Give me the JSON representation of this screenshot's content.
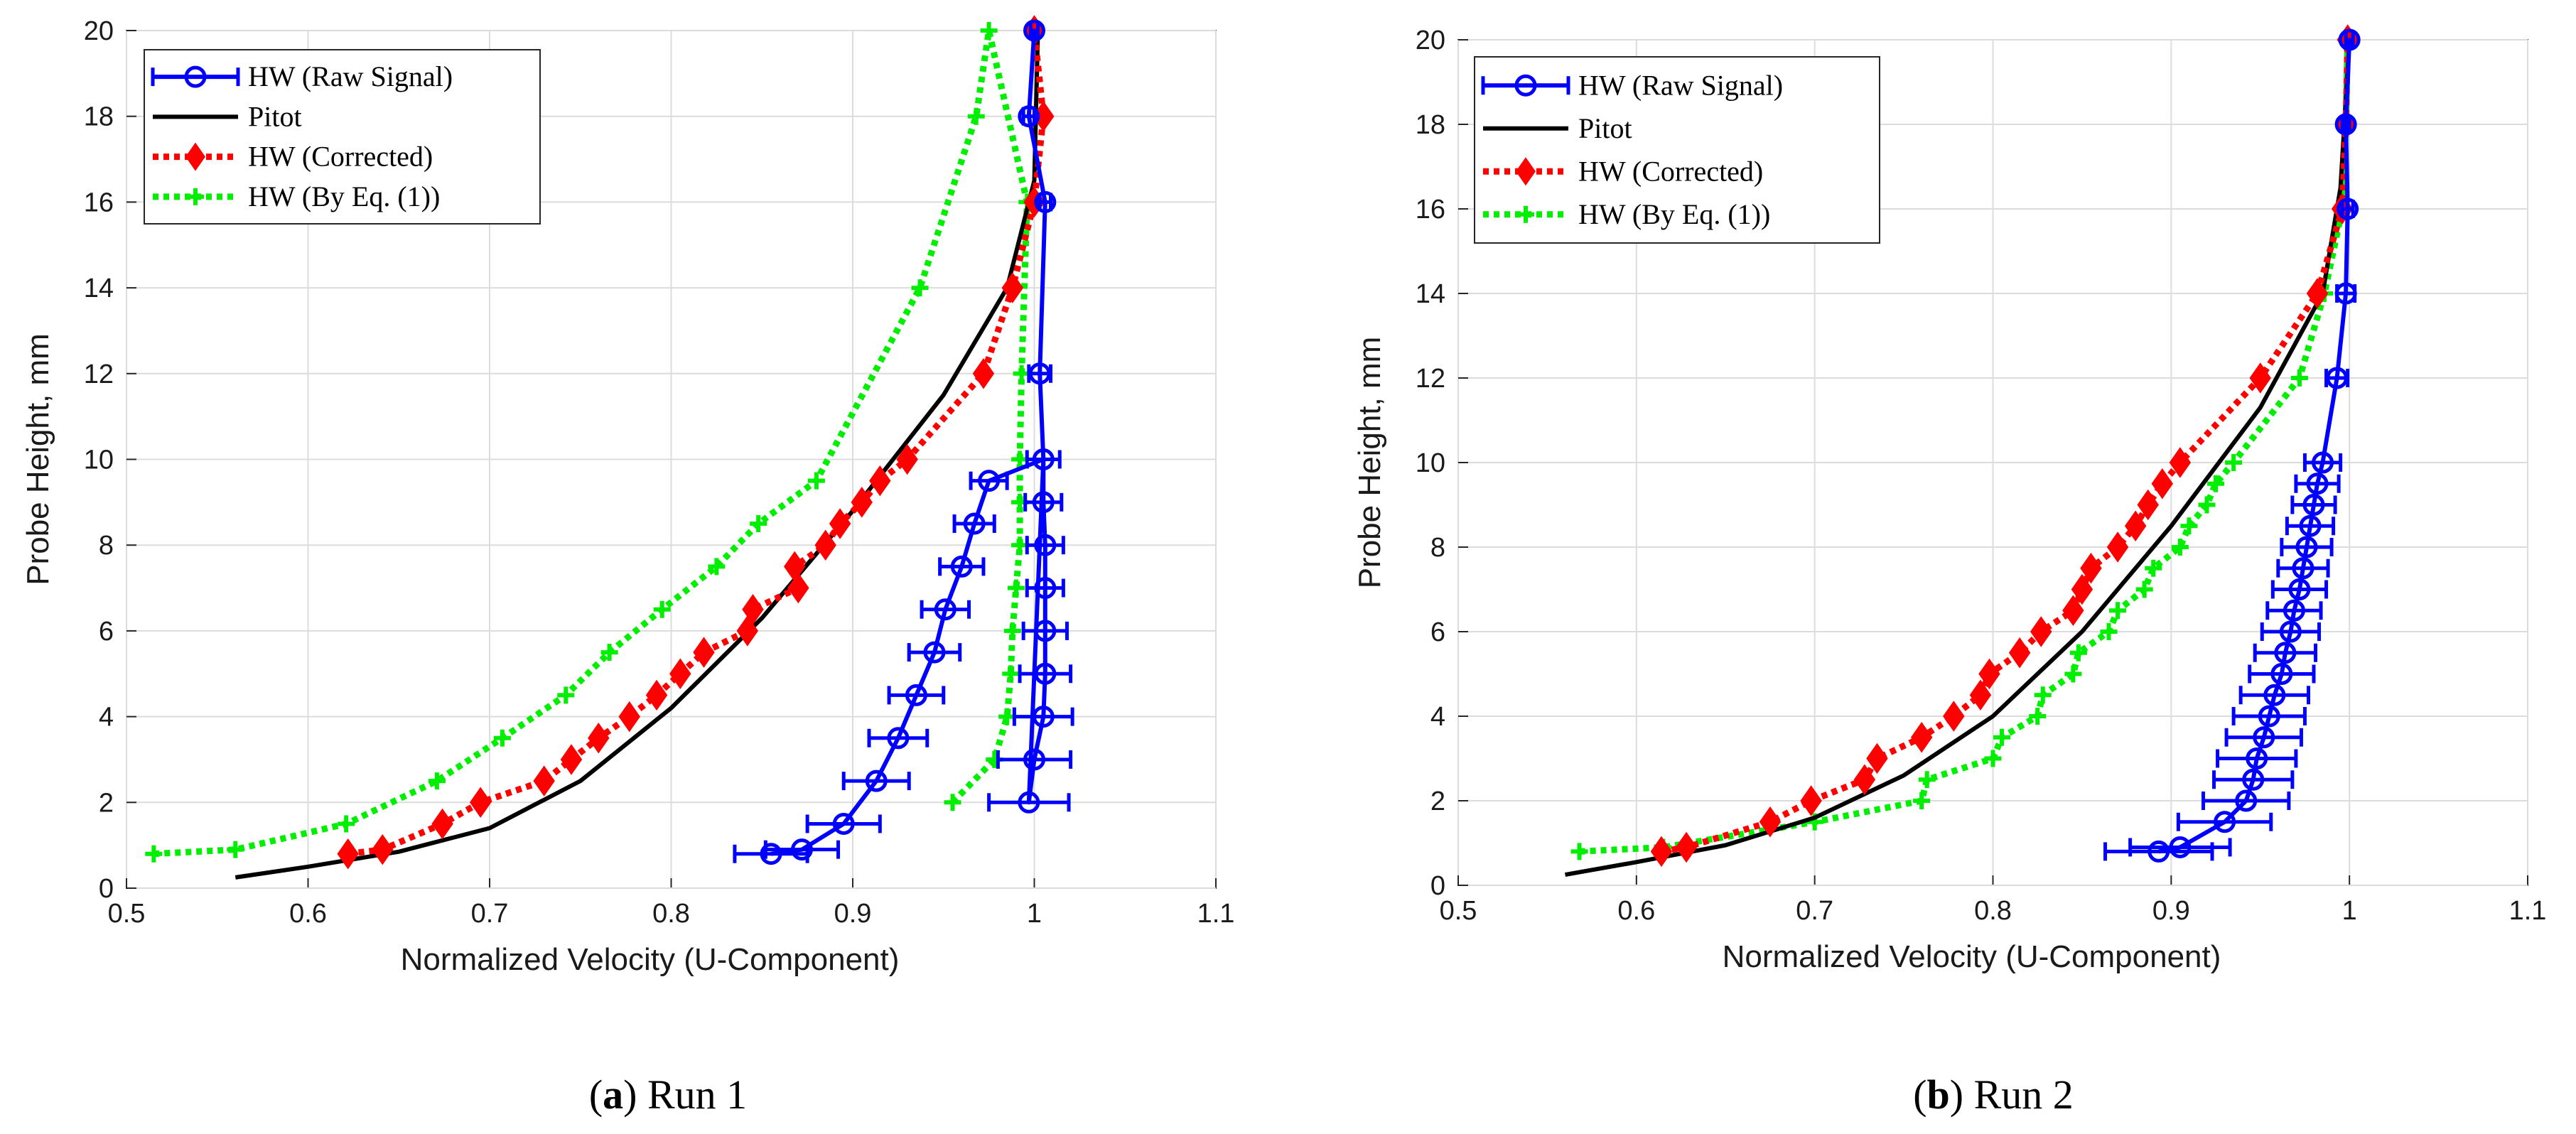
{
  "chart_data": [
    {
      "type": "line",
      "panel": "a",
      "caption_letter": "a",
      "caption_text": "Run 1",
      "xlabel": "Normalized Velocity (U-Component)",
      "ylabel": "Probe Height, mm",
      "xlim": [
        0.5,
        1.1
      ],
      "ylim": [
        0,
        20
      ],
      "xticks": [
        0.5,
        0.6,
        0.7,
        0.8,
        0.9,
        1,
        1.1
      ],
      "yticks": [
        0,
        2,
        4,
        6,
        8,
        10,
        12,
        14,
        16,
        18,
        20
      ],
      "grid": true,
      "legend_position": "top-left",
      "series": [
        {
          "name": "HW (Raw Signal)",
          "color": "#0000ff",
          "style": "solid",
          "marker": "circle",
          "errorbars": true,
          "points": [
            [
              0.855,
              0.8
            ],
            [
              0.872,
              0.9
            ],
            [
              0.895,
              1.5
            ],
            [
              0.913,
              2.5
            ],
            [
              0.925,
              3.5
            ],
            [
              0.935,
              4.5
            ],
            [
              0.945,
              5.5
            ],
            [
              0.951,
              6.5
            ],
            [
              0.96,
              7.5
            ],
            [
              0.967,
              8.5
            ],
            [
              0.975,
              9.5
            ],
            [
              1.005,
              10.0
            ],
            [
              1.005,
              9.0
            ],
            [
              1.006,
              8.0
            ],
            [
              1.006,
              7.0
            ],
            [
              1.006,
              6.0
            ],
            [
              1.006,
              5.0
            ],
            [
              1.005,
              4.0
            ],
            [
              1.0,
              3.0
            ],
            [
              0.997,
              2.0
            ],
            [
              1.003,
              12.0
            ],
            [
              1.006,
              16.0
            ],
            [
              0.997,
              18.0
            ],
            [
              1.0,
              20.0
            ]
          ],
          "line_order": [
            [
              0.855,
              0.8
            ],
            [
              0.872,
              0.9
            ],
            [
              0.895,
              1.5
            ],
            [
              0.913,
              2.5
            ],
            [
              0.925,
              3.5
            ],
            [
              0.935,
              4.5
            ],
            [
              0.945,
              5.5
            ],
            [
              0.951,
              6.5
            ],
            [
              0.96,
              7.5
            ],
            [
              0.967,
              8.5
            ],
            [
              0.975,
              9.5
            ],
            [
              1.005,
              10.0
            ],
            [
              1.005,
              9.0
            ],
            [
              1.006,
              8.0
            ],
            [
              1.006,
              7.0
            ],
            [
              1.006,
              6.0
            ],
            [
              1.006,
              5.0
            ],
            [
              1.005,
              4.0
            ],
            [
              1.0,
              3.0
            ],
            [
              0.997,
              2.0
            ],
            [
              1.005,
              10.0
            ],
            [
              1.003,
              12.0
            ],
            [
              1.006,
              16.0
            ],
            [
              0.997,
              18.0
            ],
            [
              1.0,
              20.0
            ]
          ],
          "xerr": [
            0.02,
            0.02,
            0.02,
            0.018,
            0.016,
            0.015,
            0.014,
            0.013,
            0.012,
            0.011,
            0.01,
            0.009,
            0.01,
            0.01,
            0.01,
            0.012,
            0.014,
            0.016,
            0.02,
            0.022,
            0.006,
            0.003,
            0.003,
            0.002
          ]
        },
        {
          "name": "Pitot",
          "color": "#000000",
          "style": "solid",
          "marker": "none",
          "points": [
            [
              0.56,
              0.25
            ],
            [
              0.6,
              0.5
            ],
            [
              0.65,
              0.85
            ],
            [
              0.7,
              1.4
            ],
            [
              0.75,
              2.5
            ],
            [
              0.8,
              4.2
            ],
            [
              0.85,
              6.3
            ],
            [
              0.9,
              8.8
            ],
            [
              0.95,
              11.5
            ],
            [
              0.985,
              14.0
            ],
            [
              1.0,
              16.5
            ],
            [
              1.002,
              20.0
            ]
          ]
        },
        {
          "name": "HW (Corrected)",
          "color": "#ff0000",
          "style": "dotted",
          "marker": "diamond",
          "points": [
            [
              0.622,
              0.8
            ],
            [
              0.641,
              0.9
            ],
            [
              0.674,
              1.5
            ],
            [
              0.695,
              2.0
            ],
            [
              0.73,
              2.5
            ],
            [
              0.745,
              3.0
            ],
            [
              0.76,
              3.5
            ],
            [
              0.777,
              4.0
            ],
            [
              0.792,
              4.5
            ],
            [
              0.805,
              5.0
            ],
            [
              0.818,
              5.5
            ],
            [
              0.842,
              6.0
            ],
            [
              0.845,
              6.5
            ],
            [
              0.87,
              7.0
            ],
            [
              0.868,
              7.5
            ],
            [
              0.885,
              8.0
            ],
            [
              0.893,
              8.5
            ],
            [
              0.905,
              9.0
            ],
            [
              0.915,
              9.5
            ],
            [
              0.93,
              10.0
            ],
            [
              0.972,
              12.0
            ],
            [
              0.988,
              14.0
            ],
            [
              1.0,
              16.0
            ],
            [
              1.005,
              18.0
            ],
            [
              1.0,
              20.0
            ]
          ]
        },
        {
          "name": "HW (By Eq. (1))",
          "color": "#00ee00",
          "style": "dotted",
          "marker": "plus",
          "points": [
            [
              0.515,
              0.8
            ],
            [
              0.56,
              0.9
            ],
            [
              0.621,
              1.5
            ],
            [
              0.671,
              2.5
            ],
            [
              0.707,
              3.5
            ],
            [
              0.742,
              4.5
            ],
            [
              0.766,
              5.5
            ],
            [
              0.795,
              6.5
            ],
            [
              0.825,
              7.5
            ],
            [
              0.848,
              8.5
            ],
            [
              0.88,
              9.5
            ],
            [
              0.937,
              14.0
            ],
            [
              0.968,
              18.0
            ],
            [
              0.975,
              20.0
            ],
            [
              0.996,
              16.0
            ],
            [
              0.993,
              12.0
            ],
            [
              0.992,
              10.0
            ],
            [
              0.992,
              9.0
            ],
            [
              0.992,
              8.0
            ],
            [
              0.99,
              7.0
            ],
            [
              0.988,
              6.0
            ],
            [
              0.987,
              5.0
            ],
            [
              0.985,
              4.0
            ],
            [
              0.978,
              3.0
            ],
            [
              0.955,
              2.0
            ]
          ]
        }
      ]
    },
    {
      "type": "line",
      "panel": "b",
      "caption_letter": "b",
      "caption_text": "Run 2",
      "xlabel": "Normalized Velocity (U-Component)",
      "ylabel": "Probe Height, mm",
      "xlim": [
        0.5,
        1.1
      ],
      "ylim": [
        0,
        20
      ],
      "xticks": [
        0.5,
        0.6,
        0.7,
        0.8,
        0.9,
        1,
        1.1
      ],
      "yticks": [
        0,
        2,
        4,
        6,
        8,
        10,
        12,
        14,
        16,
        18,
        20
      ],
      "grid": true,
      "legend_position": "top-left",
      "series": [
        {
          "name": "HW (Raw Signal)",
          "color": "#0000ff",
          "style": "solid",
          "marker": "circle",
          "errorbars": true,
          "points": [
            [
              0.893,
              0.8
            ],
            [
              0.905,
              0.9
            ],
            [
              0.93,
              1.5
            ],
            [
              0.942,
              2.0
            ],
            [
              0.946,
              2.5
            ],
            [
              0.948,
              3.0
            ],
            [
              0.952,
              3.5
            ],
            [
              0.955,
              4.0
            ],
            [
              0.958,
              4.5
            ],
            [
              0.962,
              5.0
            ],
            [
              0.964,
              5.5
            ],
            [
              0.967,
              6.0
            ],
            [
              0.969,
              6.5
            ],
            [
              0.972,
              7.0
            ],
            [
              0.974,
              7.5
            ],
            [
              0.976,
              8.0
            ],
            [
              0.978,
              8.5
            ],
            [
              0.98,
              9.0
            ],
            [
              0.982,
              9.5
            ],
            [
              0.985,
              10.0
            ],
            [
              0.993,
              12.0
            ],
            [
              0.998,
              14.0
            ],
            [
              0.999,
              16.0
            ],
            [
              0.998,
              18.0
            ],
            [
              1.0,
              20.0
            ]
          ],
          "xerr": [
            0.03,
            0.028,
            0.026,
            0.024,
            0.022,
            0.022,
            0.021,
            0.02,
            0.019,
            0.018,
            0.017,
            0.016,
            0.015,
            0.015,
            0.014,
            0.014,
            0.013,
            0.012,
            0.012,
            0.01,
            0.006,
            0.005,
            0.003,
            0.002,
            0.002
          ]
        },
        {
          "name": "Pitot",
          "color": "#000000",
          "style": "solid",
          "marker": "none",
          "points": [
            [
              0.56,
              0.25
            ],
            [
              0.6,
              0.55
            ],
            [
              0.65,
              0.95
            ],
            [
              0.7,
              1.6
            ],
            [
              0.75,
              2.6
            ],
            [
              0.8,
              4.0
            ],
            [
              0.85,
              6.0
            ],
            [
              0.9,
              8.5
            ],
            [
              0.95,
              11.3
            ],
            [
              0.985,
              14.0
            ],
            [
              0.995,
              16.5
            ],
            [
              1.0,
              20.0
            ]
          ]
        },
        {
          "name": "HW (Corrected)",
          "color": "#ff0000",
          "style": "dotted",
          "marker": "diamond",
          "points": [
            [
              0.614,
              0.8
            ],
            [
              0.628,
              0.9
            ],
            [
              0.675,
              1.5
            ],
            [
              0.698,
              2.0
            ],
            [
              0.728,
              2.5
            ],
            [
              0.735,
              3.0
            ],
            [
              0.76,
              3.5
            ],
            [
              0.778,
              4.0
            ],
            [
              0.793,
              4.5
            ],
            [
              0.798,
              5.0
            ],
            [
              0.815,
              5.5
            ],
            [
              0.827,
              6.0
            ],
            [
              0.845,
              6.5
            ],
            [
              0.85,
              7.0
            ],
            [
              0.855,
              7.5
            ],
            [
              0.87,
              8.0
            ],
            [
              0.88,
              8.5
            ],
            [
              0.887,
              9.0
            ],
            [
              0.895,
              9.5
            ],
            [
              0.905,
              10.0
            ],
            [
              0.95,
              12.0
            ],
            [
              0.982,
              14.0
            ],
            [
              0.996,
              16.0
            ],
            [
              0.998,
              18.0
            ],
            [
              0.999,
              20.0
            ]
          ]
        },
        {
          "name": "HW (By Eq. (1))",
          "color": "#00ee00",
          "style": "dotted",
          "marker": "plus",
          "points": [
            [
              0.568,
              0.8
            ],
            [
              0.615,
              0.9
            ],
            [
              0.7,
              1.5
            ],
            [
              0.76,
              2.0
            ],
            [
              0.763,
              2.5
            ],
            [
              0.8,
              3.0
            ],
            [
              0.805,
              3.5
            ],
            [
              0.825,
              4.0
            ],
            [
              0.828,
              4.5
            ],
            [
              0.845,
              5.0
            ],
            [
              0.848,
              5.5
            ],
            [
              0.865,
              6.0
            ],
            [
              0.87,
              6.5
            ],
            [
              0.885,
              7.0
            ],
            [
              0.89,
              7.5
            ],
            [
              0.905,
              8.0
            ],
            [
              0.91,
              8.5
            ],
            [
              0.92,
              9.0
            ],
            [
              0.925,
              9.5
            ],
            [
              0.935,
              10.0
            ],
            [
              0.972,
              12.0
            ],
            [
              0.986,
              14.0
            ],
            [
              0.996,
              16.0
            ],
            [
              0.998,
              18.0
            ],
            [
              0.999,
              20.0
            ]
          ]
        }
      ]
    }
  ]
}
